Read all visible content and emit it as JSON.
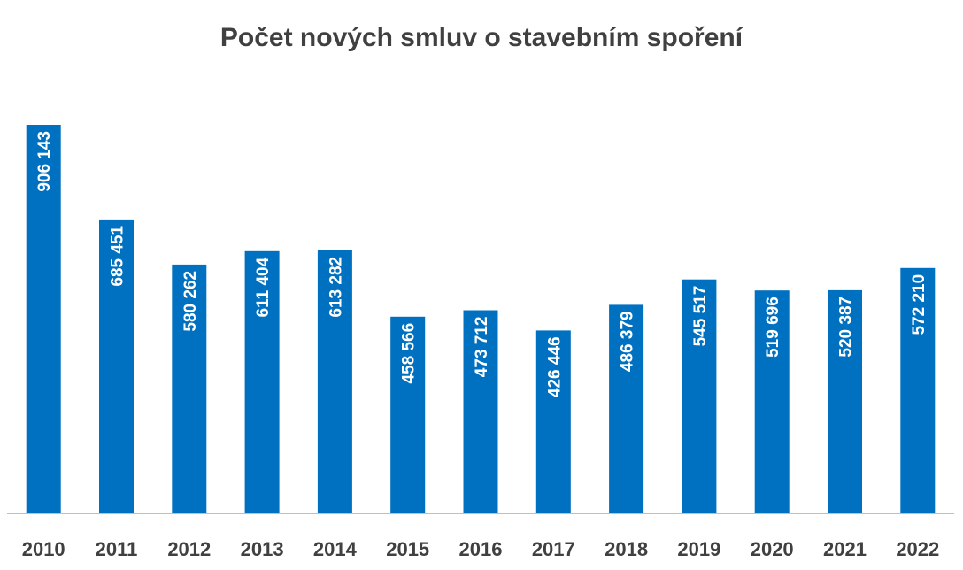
{
  "chart_data": {
    "type": "bar",
    "title": "Počet nových smluv o stavebním spoření",
    "xlabel": "",
    "ylabel": "",
    "categories": [
      "2010",
      "2011",
      "2012",
      "2013",
      "2014",
      "2015",
      "2016",
      "2017",
      "2018",
      "2019",
      "2020",
      "2021",
      "2022"
    ],
    "values": [
      906143,
      685451,
      580262,
      611404,
      613282,
      458566,
      473712,
      426446,
      486379,
      545517,
      519696,
      520387,
      572210
    ],
    "data_labels": [
      "906 143",
      "685 451",
      "580 262",
      "611 404",
      "613 282",
      "458 566",
      "473 712",
      "426 446",
      "486 379",
      "545 517",
      "519 696",
      "520 387",
      "572 210"
    ],
    "ylim": [
      0,
      906143
    ],
    "grid": false,
    "legend": "none",
    "bar_color": "#0070C0",
    "axis_color": "#BFBFBF"
  }
}
